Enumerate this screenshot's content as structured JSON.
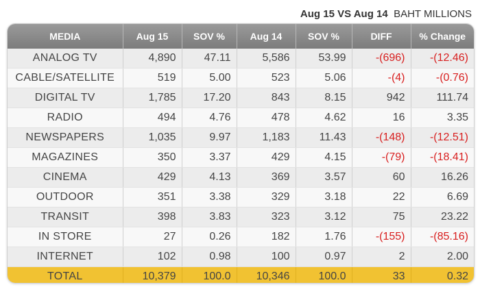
{
  "header": {
    "title_bold": "Aug 15 VS Aug 14",
    "title_rest": "BAHT MILLIONS"
  },
  "table": {
    "columns": [
      "MEDIA",
      "Aug 15",
      "SOV %",
      "Aug 14",
      "SOV %",
      "DIFF",
      "% Change"
    ],
    "rows": [
      {
        "media": "ANALOG   TV",
        "aug15": "4,890",
        "sov15": "47.11",
        "aug14": "5,586",
        "sov14": "53.99",
        "diff": "-(696)",
        "change": "-(12.46)",
        "neg": true
      },
      {
        "media": "CABLE/SATELLITE",
        "aug15": "519",
        "sov15": "5.00",
        "aug14": "523",
        "sov14": "5.06",
        "diff": "-(4)",
        "change": "-(0.76)",
        "neg": true
      },
      {
        "media": "DIGITAL TV",
        "aug15": "1,785",
        "sov15": "17.20",
        "aug14": "843",
        "sov14": "8.15",
        "diff": "942",
        "change": "111.74",
        "neg": false
      },
      {
        "media": "RADIO",
        "aug15": "494",
        "sov15": "4.76",
        "aug14": "478",
        "sov14": "4.62",
        "diff": "16",
        "change": "3.35",
        "neg": false
      },
      {
        "media": "NEWSPAPERS",
        "aug15": "1,035",
        "sov15": "9.97",
        "aug14": "1,183",
        "sov14": "11.43",
        "diff": "-(148)",
        "change": "-(12.51)",
        "neg": true
      },
      {
        "media": "MAGAZINES",
        "aug15": "350",
        "sov15": "3.37",
        "aug14": "429",
        "sov14": "4.15",
        "diff": "-(79)",
        "change": "-(18.41)",
        "neg": true
      },
      {
        "media": "CINEMA",
        "aug15": "429",
        "sov15": "4.13",
        "aug14": "369",
        "sov14": "3.57",
        "diff": "60",
        "change": "16.26",
        "neg": false
      },
      {
        "media": "OUTDOOR",
        "aug15": "351",
        "sov15": "3.38",
        "aug14": "329",
        "sov14": "3.18",
        "diff": "22",
        "change": "6.69",
        "neg": false
      },
      {
        "media": "TRANSIT",
        "aug15": "398",
        "sov15": "3.83",
        "aug14": "323",
        "sov14": "3.12",
        "diff": "75",
        "change": "23.22",
        "neg": false
      },
      {
        "media": "IN STORE",
        "aug15": "27",
        "sov15": "0.26",
        "aug14": "182",
        "sov14": "1.76",
        "diff": "-(155)",
        "change": "-(85.16)",
        "neg": true
      },
      {
        "media": "INTERNET",
        "aug15": "102",
        "sov15": "0.98",
        "aug14": "100",
        "sov14": "0.97",
        "diff": "2",
        "change": "2.00",
        "neg": false
      }
    ],
    "total": {
      "media": "TOTAL",
      "aug15": "10,379",
      "sov15": "100.0",
      "aug14": "10,346",
      "sov14": "100.0",
      "diff": "33",
      "change": "0.32"
    }
  },
  "colors": {
    "header_bg": "#8a8a8a",
    "negative": "#d81e1e",
    "total_bg": "#f1c232"
  }
}
